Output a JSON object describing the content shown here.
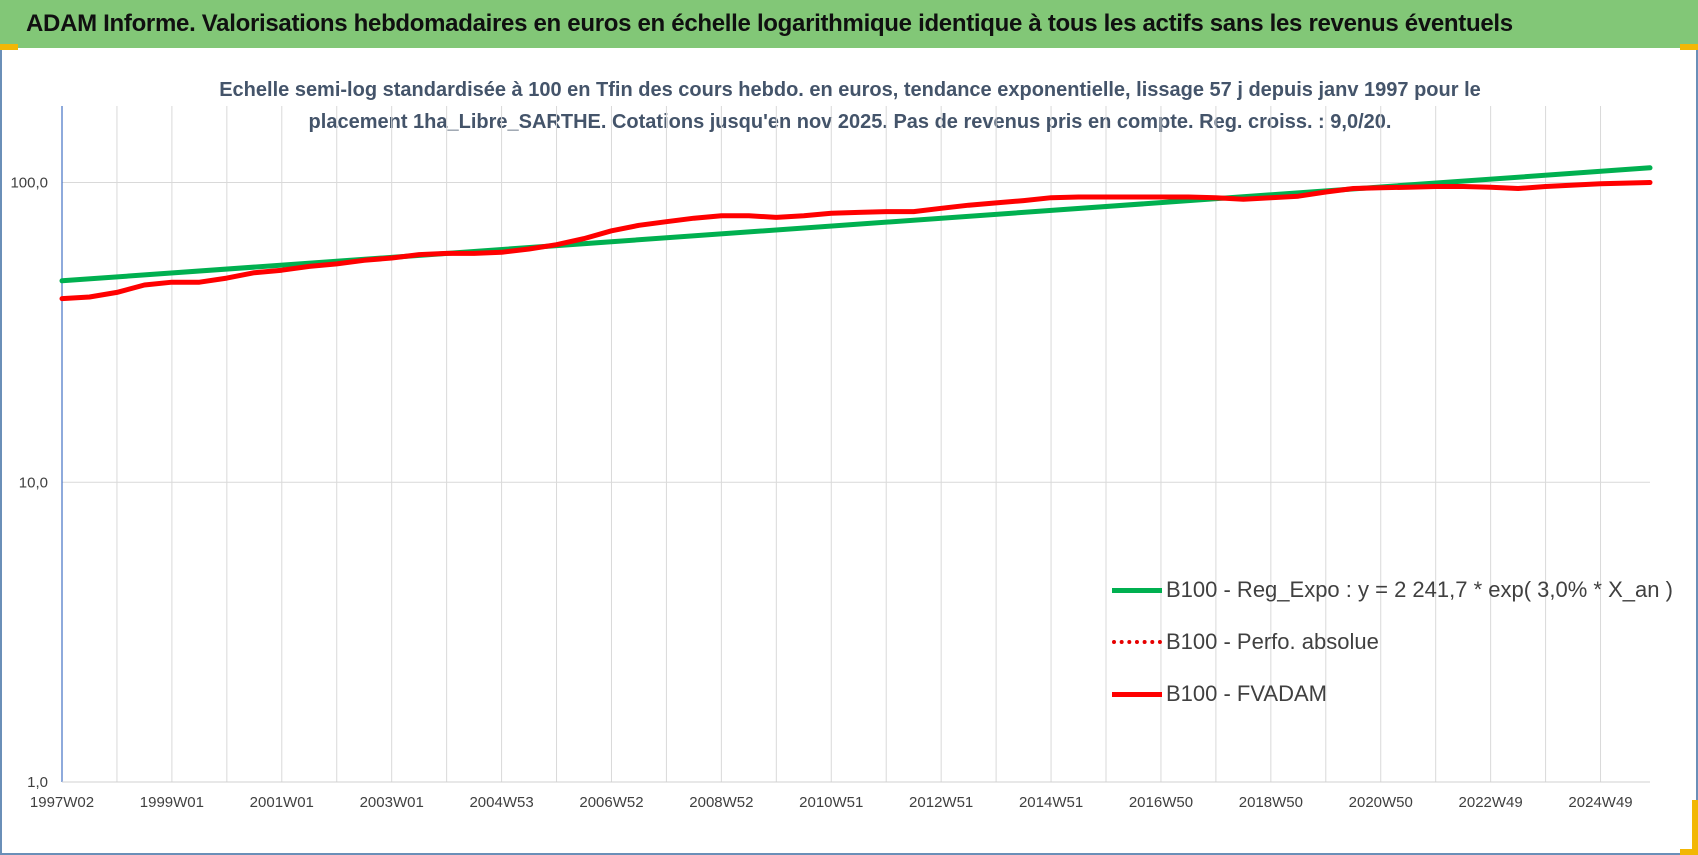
{
  "header": {
    "title": "ADAM Informe. Valorisations hebdomadaires en euros en échelle logarithmique identique à tous les actifs sans les revenus éventuels"
  },
  "colors": {
    "header_bg": "#82c777",
    "trend": "#00b050",
    "fvadam": "#ff0000",
    "gridline": "#d9d9d9",
    "axis": "#4472c4"
  },
  "chart_data": {
    "type": "line",
    "title": "Echelle semi-log standardisée à 100 en Tfin des cours hebdo. en euros, tendance exponentielle, lissage 57 j depuis janv 1997 pour le placement 1ha_Libre_SARTHE. Cotations jusqu'en nov 2025. Pas de revenus pris en compte. Reg. croiss. : 9,0/20.",
    "title_lines": [
      "Echelle semi-log standardisée à 100 en Tfin des cours hebdo. en euros, tendance exponentielle, lissage 57 j depuis janv 1997 pour le",
      "placement 1ha_Libre_SARTHE. Cotations jusqu'en nov 2025. Pas de revenus pris en compte. Reg. croiss. : 9,0/20."
    ],
    "y_scale": "log",
    "ylim": [
      1,
      180
    ],
    "xlim": [
      1997.0,
      2025.9
    ],
    "y_ticks": [
      {
        "value": 1,
        "label": "1,0"
      },
      {
        "value": 10,
        "label": "10,0"
      },
      {
        "value": 100,
        "label": "100,0"
      }
    ],
    "x_ticks": [
      {
        "value": 1997.0,
        "label": "1997W02"
      },
      {
        "value": 1999.0,
        "label": "1999W01"
      },
      {
        "value": 2001.0,
        "label": "2001W01"
      },
      {
        "value": 2003.0,
        "label": "2003W01"
      },
      {
        "value": 2005.0,
        "label": "2004W53"
      },
      {
        "value": 2007.0,
        "label": "2006W52"
      },
      {
        "value": 2009.0,
        "label": "2008W52"
      },
      {
        "value": 2011.0,
        "label": "2010W51"
      },
      {
        "value": 2013.0,
        "label": "2012W51"
      },
      {
        "value": 2015.0,
        "label": "2014W51"
      },
      {
        "value": 2017.0,
        "label": "2016W50"
      },
      {
        "value": 2019.0,
        "label": "2018W50"
      },
      {
        "value": 2021.0,
        "label": "2020W50"
      },
      {
        "value": 2023.0,
        "label": "2022W49"
      },
      {
        "value": 2025.0,
        "label": "2024W49"
      }
    ],
    "grid": true,
    "legend_position": "bottom-right",
    "series": [
      {
        "name": "B100 - Reg_Expo : y = 2 241,7 * exp( 3,0% *  X_an )",
        "color": "#00b050",
        "style": "solid",
        "x": [
          1997.0,
          2025.9
        ],
        "y": [
          47.0,
          112.0
        ]
      },
      {
        "name": "B100 - Perfo. absolue",
        "color": "#e60000",
        "style": "dotted",
        "x": [],
        "y": []
      },
      {
        "name": "B100 - FVADAM",
        "color": "#ff0000",
        "style": "solid",
        "x": [
          1997.0,
          1997.5,
          1998.0,
          1998.5,
          1999.0,
          1999.5,
          2000.0,
          2000.5,
          2001.0,
          2001.5,
          2002.0,
          2002.5,
          2003.0,
          2003.5,
          2004.0,
          2004.5,
          2005.0,
          2005.5,
          2006.0,
          2006.5,
          2007.0,
          2007.5,
          2008.0,
          2008.5,
          2009.0,
          2009.5,
          2010.0,
          2010.5,
          2011.0,
          2011.5,
          2012.0,
          2012.5,
          2013.0,
          2013.5,
          2014.0,
          2014.5,
          2015.0,
          2015.5,
          2016.0,
          2016.5,
          2017.0,
          2017.5,
          2018.0,
          2018.5,
          2019.0,
          2019.5,
          2020.0,
          2020.5,
          2021.0,
          2021.5,
          2022.0,
          2022.5,
          2023.0,
          2023.5,
          2024.0,
          2024.5,
          2025.0,
          2025.9
        ],
        "y": [
          41.0,
          41.5,
          43.0,
          45.5,
          46.5,
          46.5,
          48.0,
          50.0,
          51.0,
          52.5,
          53.5,
          55.0,
          56.0,
          57.5,
          58.0,
          58.0,
          58.5,
          60.0,
          62.0,
          65.0,
          69.0,
          72.0,
          74.0,
          76.0,
          77.5,
          77.5,
          76.5,
          77.5,
          79.0,
          79.5,
          80.0,
          80.0,
          82.0,
          84.0,
          85.5,
          87.0,
          89.0,
          89.5,
          89.5,
          89.5,
          89.5,
          89.5,
          89.0,
          88.0,
          89.0,
          90.0,
          93.0,
          95.5,
          96.0,
          96.5,
          97.0,
          97.0,
          96.5,
          95.5,
          97.0,
          98.0,
          99.0,
          100.0
        ]
      }
    ]
  }
}
